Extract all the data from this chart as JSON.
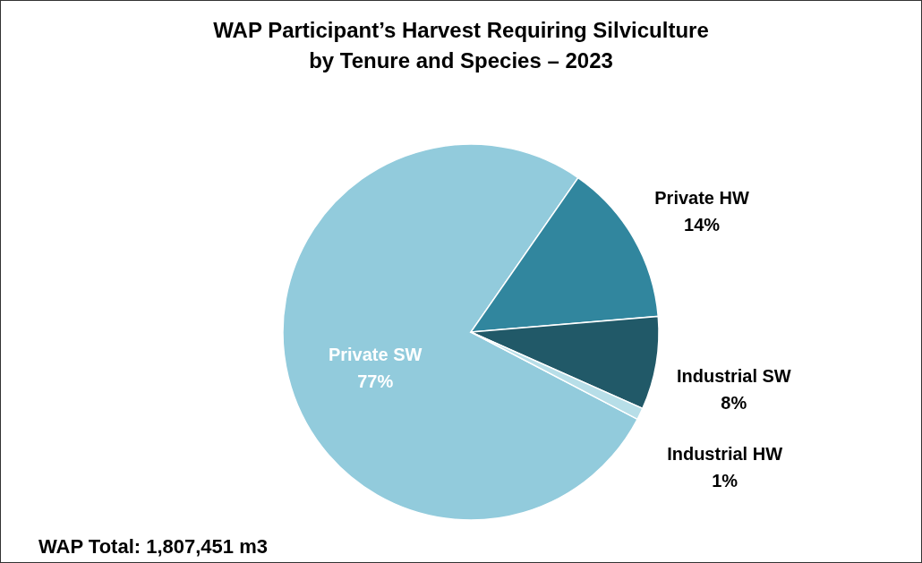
{
  "chart_data": {
    "type": "pie",
    "title": "WAP Participant’s Harvest Requiring Silviculture\nby Tenure and Species – 2023",
    "categories": [
      "Private SW",
      "Private HW",
      "Industrial SW",
      "Industrial HW"
    ],
    "values": [
      77,
      14,
      8,
      1
    ],
    "value_labels": [
      "77%",
      "14%",
      "8%",
      "1%"
    ],
    "colors": [
      "#92cbdc",
      "#31869e",
      "#215968",
      "#b7dee8"
    ],
    "annotations": [
      "WAP Total: 1,807,451 m3"
    ]
  }
}
